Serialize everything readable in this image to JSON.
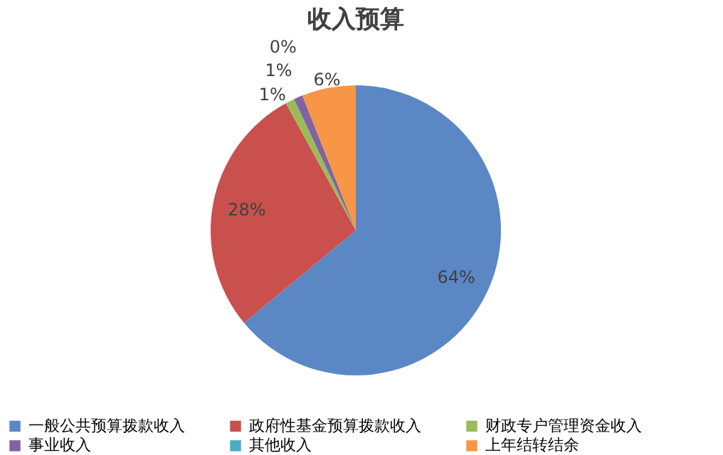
{
  "chart_data": {
    "type": "pie",
    "title": "收入预算",
    "categories": [
      "一般公共预算拨款收入",
      "政府性基金预算拨款收入",
      "财政专户管理资金收入",
      "事业收入",
      "其他收入",
      "上年结转结余"
    ],
    "values": [
      64,
      28,
      1,
      1,
      0,
      6
    ],
    "value_labels": [
      "64%",
      "28%",
      "1%",
      "1%",
      "0%",
      "6%"
    ],
    "colors": [
      "#5b87c5",
      "#c9504d",
      "#9bbb59",
      "#8064a2",
      "#4bacc6",
      "#f79646"
    ],
    "legend": "bottom"
  }
}
